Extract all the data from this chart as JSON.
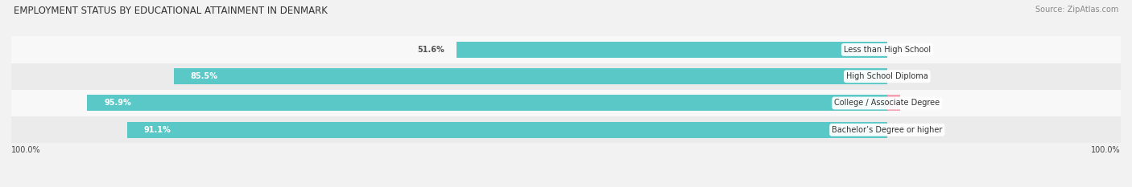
{
  "title": "EMPLOYMENT STATUS BY EDUCATIONAL ATTAINMENT IN DENMARK",
  "source": "Source: ZipAtlas.com",
  "categories": [
    "Less than High School",
    "High School Diploma",
    "College / Associate Degree",
    "Bachelor’s Degree or higher"
  ],
  "labor_force_pct": [
    51.6,
    85.5,
    95.9,
    91.1
  ],
  "unemployed_pct": [
    0.0,
    0.0,
    1.6,
    0.0
  ],
  "bar_color_labor": "#5BC8C8",
  "bar_color_unemployed": "#F4A0B0",
  "bg_color": "#f2f2f2",
  "row_colors": [
    "#f8f8f8",
    "#ebebeb",
    "#f8f8f8",
    "#ebebeb"
  ],
  "title_fontsize": 8.5,
  "source_fontsize": 7,
  "bar_label_fontsize": 7,
  "category_fontsize": 7,
  "legend_fontsize": 7.5,
  "axis_label_fontsize": 7,
  "bar_height": 0.6,
  "x_left_label": "100.0%",
  "x_right_label": "100.0%",
  "label_inside_color": "#ffffff",
  "label_outside_color": "#555555"
}
